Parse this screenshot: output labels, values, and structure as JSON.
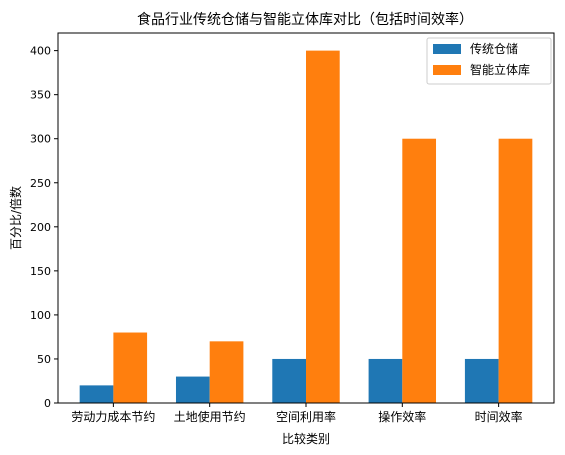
{
  "chart_data": {
    "type": "bar",
    "title": "食品行业传统仓储与智能立体库对比（包括时间效率）",
    "xlabel": "比较类别",
    "ylabel": "百分比/倍数",
    "categories": [
      "劳动力成本节约",
      "土地使用节约",
      "空间利用率",
      "操作效率",
      "时间效率"
    ],
    "series": [
      {
        "name": "传统仓储",
        "values": [
          20,
          30,
          50,
          50,
          50
        ],
        "color": "#1f77b4"
      },
      {
        "name": "智能立体库",
        "values": [
          80,
          70,
          400,
          300,
          300
        ],
        "color": "#ff7f0e"
      }
    ],
    "ylim": [
      0,
      420
    ],
    "yticks": [
      0,
      50,
      100,
      150,
      200,
      250,
      300,
      350,
      400
    ],
    "legend_position": "top-right",
    "grid": false
  }
}
